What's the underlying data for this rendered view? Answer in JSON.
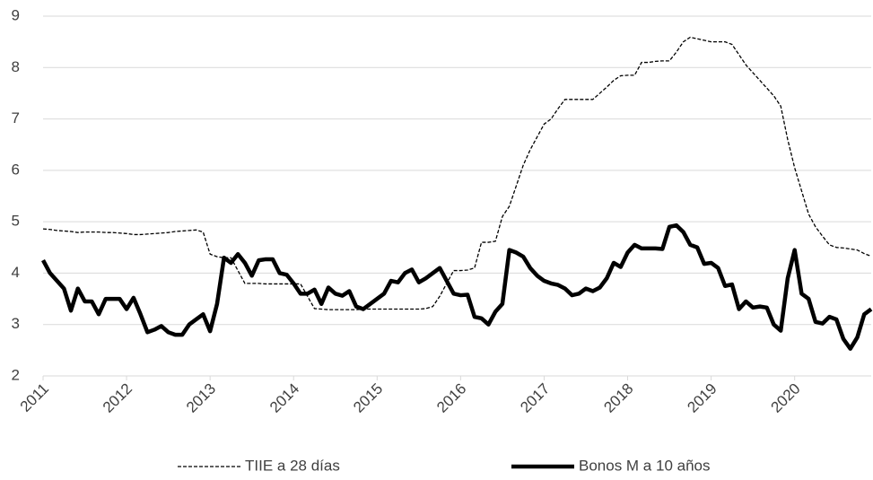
{
  "chart_data": {
    "type": "line",
    "categories": [
      "2011",
      null,
      null,
      null,
      null,
      null,
      null,
      null,
      null,
      null,
      null,
      null,
      "2012",
      null,
      null,
      null,
      null,
      null,
      null,
      null,
      null,
      null,
      null,
      null,
      "2013",
      null,
      null,
      null,
      null,
      null,
      null,
      null,
      null,
      null,
      null,
      null,
      "2014",
      null,
      null,
      null,
      null,
      null,
      null,
      null,
      null,
      null,
      null,
      null,
      "2015",
      null,
      null,
      null,
      null,
      null,
      null,
      null,
      null,
      null,
      null,
      null,
      "2016",
      null,
      null,
      null,
      null,
      null,
      null,
      null,
      null,
      null,
      null,
      null,
      "2017",
      null,
      null,
      null,
      null,
      null,
      null,
      null,
      null,
      null,
      null,
      null,
      "2018",
      null,
      null,
      null,
      null,
      null,
      null,
      null,
      null,
      null,
      null,
      null,
      "2019",
      null,
      null,
      null,
      null,
      null,
      null,
      null,
      null,
      null,
      null,
      null,
      "2020",
      null,
      null,
      null,
      null,
      null,
      null,
      null,
      null,
      null,
      null,
      null
    ],
    "series": [
      {
        "name": "TIIE a 28 días",
        "color": "#000000",
        "dash": true,
        "values": [
          4.86,
          4.85,
          4.83,
          4.82,
          4.81,
          4.79,
          4.8,
          4.8,
          4.8,
          4.79,
          4.79,
          4.78,
          4.77,
          4.75,
          4.75,
          4.76,
          4.77,
          4.78,
          4.79,
          4.81,
          4.82,
          4.83,
          4.84,
          4.8,
          4.37,
          4.32,
          4.3,
          4.3,
          4.05,
          3.8,
          3.8,
          3.8,
          3.79,
          3.79,
          3.79,
          3.79,
          3.79,
          3.79,
          3.55,
          3.31,
          3.3,
          3.29,
          3.29,
          3.29,
          3.29,
          3.29,
          3.3,
          3.3,
          3.3,
          3.3,
          3.3,
          3.3,
          3.3,
          3.3,
          3.3,
          3.31,
          3.35,
          3.55,
          3.8,
          4.05,
          4.05,
          4.06,
          4.1,
          4.6,
          4.6,
          4.62,
          5.1,
          5.3,
          5.7,
          6.1,
          6.4,
          6.65,
          6.9,
          7.0,
          7.2,
          7.38,
          7.38,
          7.38,
          7.38,
          7.38,
          7.5,
          7.62,
          7.75,
          7.84,
          7.85,
          7.85,
          8.1,
          8.1,
          8.12,
          8.13,
          8.13,
          8.3,
          8.5,
          8.59,
          8.56,
          8.53,
          8.5,
          8.5,
          8.5,
          8.45,
          8.25,
          8.05,
          7.9,
          7.75,
          7.6,
          7.45,
          7.25,
          6.6,
          6.05,
          5.6,
          5.15,
          4.9,
          4.72,
          4.55,
          4.5,
          4.49,
          4.47,
          4.45,
          4.38,
          4.33
        ]
      },
      {
        "name": "Bonos M a 10 años",
        "color": "#000000",
        "dash": false,
        "values": [
          4.25,
          4.0,
          3.85,
          3.7,
          3.27,
          3.7,
          3.45,
          3.45,
          3.2,
          3.5,
          3.5,
          3.5,
          3.3,
          3.52,
          3.2,
          2.85,
          2.9,
          2.97,
          2.85,
          2.8,
          2.8,
          3.0,
          3.1,
          3.2,
          2.87,
          3.4,
          4.3,
          4.2,
          4.37,
          4.2,
          3.95,
          4.25,
          4.27,
          4.27,
          4.0,
          3.97,
          3.8,
          3.6,
          3.6,
          3.68,
          3.4,
          3.72,
          3.6,
          3.56,
          3.65,
          3.35,
          3.3,
          3.4,
          3.5,
          3.6,
          3.85,
          3.82,
          4.0,
          4.07,
          3.82,
          3.9,
          4.0,
          4.1,
          3.85,
          3.6,
          3.57,
          3.58,
          3.15,
          3.12,
          3.0,
          3.25,
          3.4,
          4.45,
          4.4,
          4.32,
          4.1,
          3.95,
          3.85,
          3.8,
          3.77,
          3.7,
          3.57,
          3.6,
          3.7,
          3.65,
          3.72,
          3.9,
          4.2,
          4.12,
          4.4,
          4.55,
          4.48,
          4.48,
          4.48,
          4.47,
          4.9,
          4.93,
          4.8,
          4.55,
          4.5,
          4.18,
          4.2,
          4.1,
          3.75,
          3.78,
          3.3,
          3.45,
          3.33,
          3.35,
          3.33,
          3.0,
          2.88,
          3.9,
          4.45,
          3.6,
          3.5,
          3.05,
          3.02,
          3.15,
          3.1,
          2.72,
          2.53,
          2.75,
          3.2,
          3.3
        ]
      }
    ],
    "ylim": [
      2,
      9
    ],
    "yticks": [
      2,
      3,
      4,
      5,
      6,
      7,
      8,
      9
    ],
    "grid": true
  }
}
